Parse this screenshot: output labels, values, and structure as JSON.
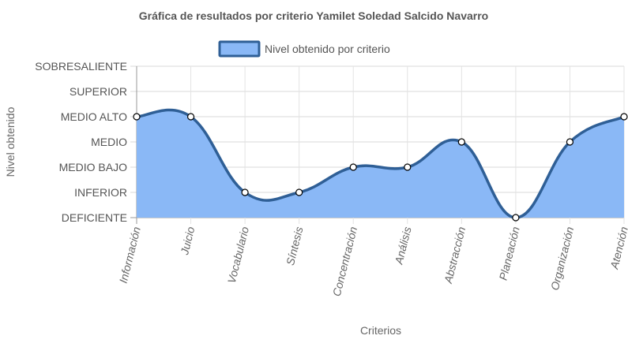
{
  "chart_data": {
    "type": "line",
    "title": "Gráfica de resultados por criterio Yamilet Soledad Salcido Navarro",
    "xlabel": "Criterios",
    "ylabel": "Nivel obtenido",
    "categories": [
      "Información",
      "Juicio",
      "Vocabulario",
      "Síntesis",
      "Concentración",
      "Análisis",
      "Abstracción",
      "Planeación",
      "Organización",
      "Atención"
    ],
    "y_levels": [
      "DEFICIENTE",
      "INFERIOR",
      "MEDIO BAJO",
      "MEDIO",
      "MEDIO ALTO",
      "SUPERIOR",
      "SOBRESALIENTE"
    ],
    "ylim": [
      0,
      6
    ],
    "grid": true,
    "legend_position": "top",
    "fill": true,
    "smooth": true,
    "series": [
      {
        "name": "Nivel obtenido por criterio",
        "values": [
          4,
          4,
          1,
          1,
          2,
          2,
          3,
          0,
          3,
          4
        ],
        "color": "#2f5f96",
        "fill_color": "#8ab8f6"
      }
    ]
  }
}
